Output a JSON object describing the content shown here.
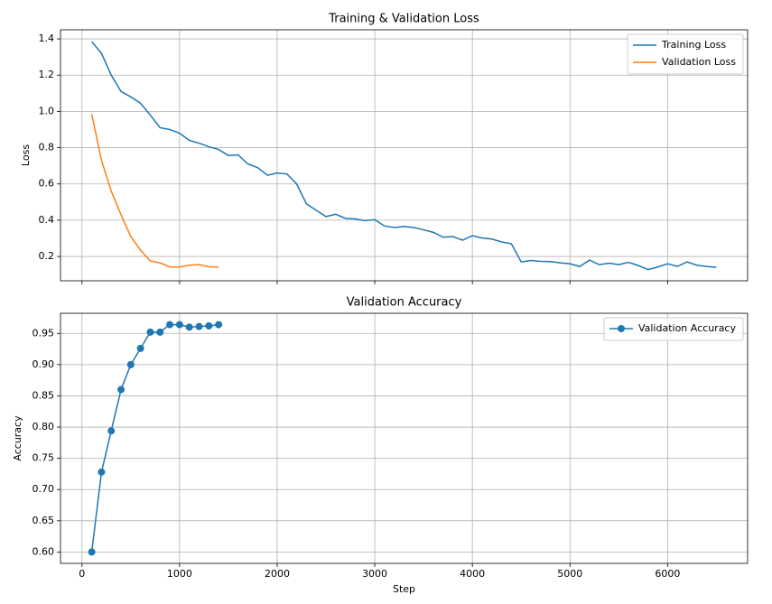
{
  "chart_data": [
    {
      "type": "line",
      "title": "Training & Validation Loss",
      "ylabel": "Loss",
      "xlim": [
        -220,
        6820
      ],
      "ylim": [
        0.066,
        1.45
      ],
      "xticks": [
        0,
        1000,
        2000,
        3000,
        4000,
        5000,
        6000
      ],
      "yticks": [
        0.2,
        0.4,
        0.6,
        0.8,
        {
          "value": 1,
          "label": "1.0"
        },
        1.2,
        1.4
      ],
      "grid": true,
      "legend": "upper-right",
      "show_xtick_labels": false,
      "series": [
        {
          "name": "Training Loss",
          "color": "#1f77b4",
          "marker": false,
          "x": [
            100,
            200,
            300,
            400,
            500,
            600,
            700,
            800,
            900,
            1000,
            1100,
            1200,
            1300,
            1400,
            1500,
            1600,
            1700,
            1800,
            1900,
            2000,
            2100,
            2200,
            2300,
            2400,
            2500,
            2600,
            2700,
            2800,
            2900,
            3000,
            3100,
            3200,
            3300,
            3400,
            3500,
            3600,
            3700,
            3800,
            3900,
            4000,
            4100,
            4200,
            4300,
            4400,
            4500,
            4600,
            4700,
            4800,
            4900,
            5000,
            5100,
            5200,
            5300,
            5400,
            5500,
            5600,
            5700,
            5800,
            5900,
            6000,
            6100,
            6200,
            6300,
            6400,
            6500
          ],
          "values": [
            1.385,
            1.32,
            1.2,
            1.11,
            1.08,
            1.045,
            0.98,
            0.91,
            0.9,
            0.88,
            0.84,
            0.825,
            0.805,
            0.79,
            0.757,
            0.76,
            0.71,
            0.69,
            0.648,
            0.66,
            0.655,
            0.6,
            0.49,
            0.455,
            0.42,
            0.433,
            0.41,
            0.407,
            0.398,
            0.403,
            0.368,
            0.36,
            0.365,
            0.36,
            0.347,
            0.333,
            0.306,
            0.31,
            0.29,
            0.315,
            0.302,
            0.296,
            0.28,
            0.27,
            0.17,
            0.178,
            0.173,
            0.172,
            0.165,
            0.16,
            0.145,
            0.18,
            0.155,
            0.163,
            0.155,
            0.168,
            0.15,
            0.128,
            0.142,
            0.16,
            0.145,
            0.17,
            0.152,
            0.145,
            0.14
          ]
        },
        {
          "name": "Validation Loss",
          "color": "#ff7f0e",
          "marker": false,
          "x": [
            100,
            200,
            300,
            400,
            500,
            600,
            700,
            800,
            900,
            1000,
            1100,
            1200,
            1300,
            1400
          ],
          "values": [
            0.985,
            0.73,
            0.56,
            0.43,
            0.31,
            0.235,
            0.175,
            0.165,
            0.142,
            0.142,
            0.152,
            0.155,
            0.143,
            0.142
          ]
        }
      ]
    },
    {
      "type": "line",
      "title": "Validation Accuracy",
      "ylabel": "Accuracy",
      "xlabel": "Step",
      "xlim": [
        -220,
        6820
      ],
      "ylim": [
        0.5818,
        0.9822
      ],
      "xticks": [
        0,
        1000,
        2000,
        3000,
        4000,
        5000,
        6000
      ],
      "yticks": [
        {
          "value": 0.6,
          "label": "0.60"
        },
        0.65,
        {
          "value": 0.7,
          "label": "0.70"
        },
        0.75,
        {
          "value": 0.8,
          "label": "0.80"
        },
        0.85,
        {
          "value": 0.9,
          "label": "0.90"
        },
        0.95
      ],
      "grid": true,
      "legend": "upper-right",
      "show_xtick_labels": true,
      "series": [
        {
          "name": "Validation Accuracy",
          "color": "#1f77b4",
          "marker": true,
          "x": [
            100,
            200,
            300,
            400,
            500,
            600,
            700,
            800,
            900,
            1000,
            1100,
            1200,
            1300,
            1400
          ],
          "values": [
            0.6,
            0.728,
            0.794,
            0.86,
            0.9,
            0.926,
            0.952,
            0.952,
            0.964,
            0.964,
            0.96,
            0.961,
            0.962,
            0.964
          ]
        }
      ]
    }
  ]
}
